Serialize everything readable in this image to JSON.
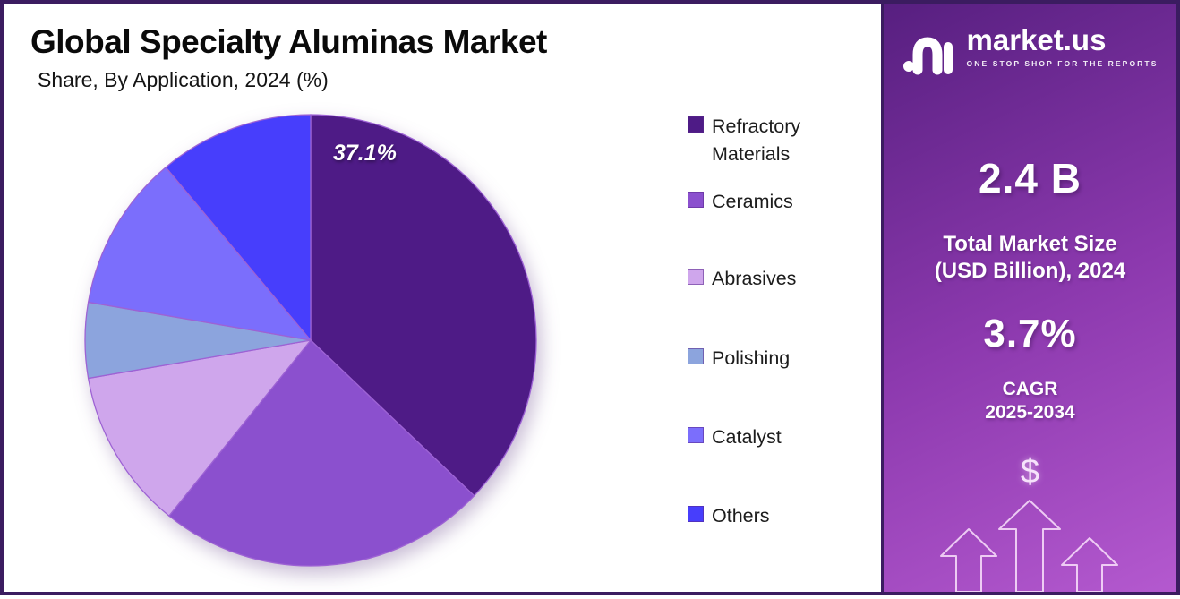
{
  "chart_data": {
    "type": "pie",
    "title": "Global Specialty Aluminas Market",
    "subtitle": "Share, By Application, 2024 (%)",
    "categories": [
      "Refractory Materials",
      "Ceramics",
      "Abrasives",
      "Polishing",
      "Catalyst",
      "Others"
    ],
    "values": [
      37.1,
      23.7,
      11.5,
      5.4,
      11.2,
      11.1
    ],
    "colors": [
      "#4E1B86",
      "#8B50CE",
      "#CFA6EC",
      "#8CA4DD",
      "#7B6EFC",
      "#473EFC"
    ],
    "slice_stroke": "#9D62D4",
    "data_label": "37.1%",
    "data_label_series": "Refractory Materials",
    "start_angle_deg": 0,
    "direction": "clockwise",
    "legend_position": "right",
    "grid": "off"
  },
  "panel": {
    "brand": "market.us",
    "tagline": "ONE STOP SHOP FOR THE REPORTS",
    "market_size": {
      "value": "2.4 B",
      "label_line1": "Total Market Size",
      "label_line2": "(USD Billion), 2024"
    },
    "cagr": {
      "value": "3.7%",
      "label_line1": "CAGR",
      "label_line2": "2025-2034"
    },
    "dollar_icon": "$"
  },
  "colors": {
    "page_border": "#3B1C60",
    "panel_gradient": [
      "#571F80",
      "#8C39AE",
      "#B459CF"
    ],
    "panel_text": "#FFFFFF",
    "title_text": "#0A0A0A",
    "legend_text": "#1C1C1C"
  }
}
